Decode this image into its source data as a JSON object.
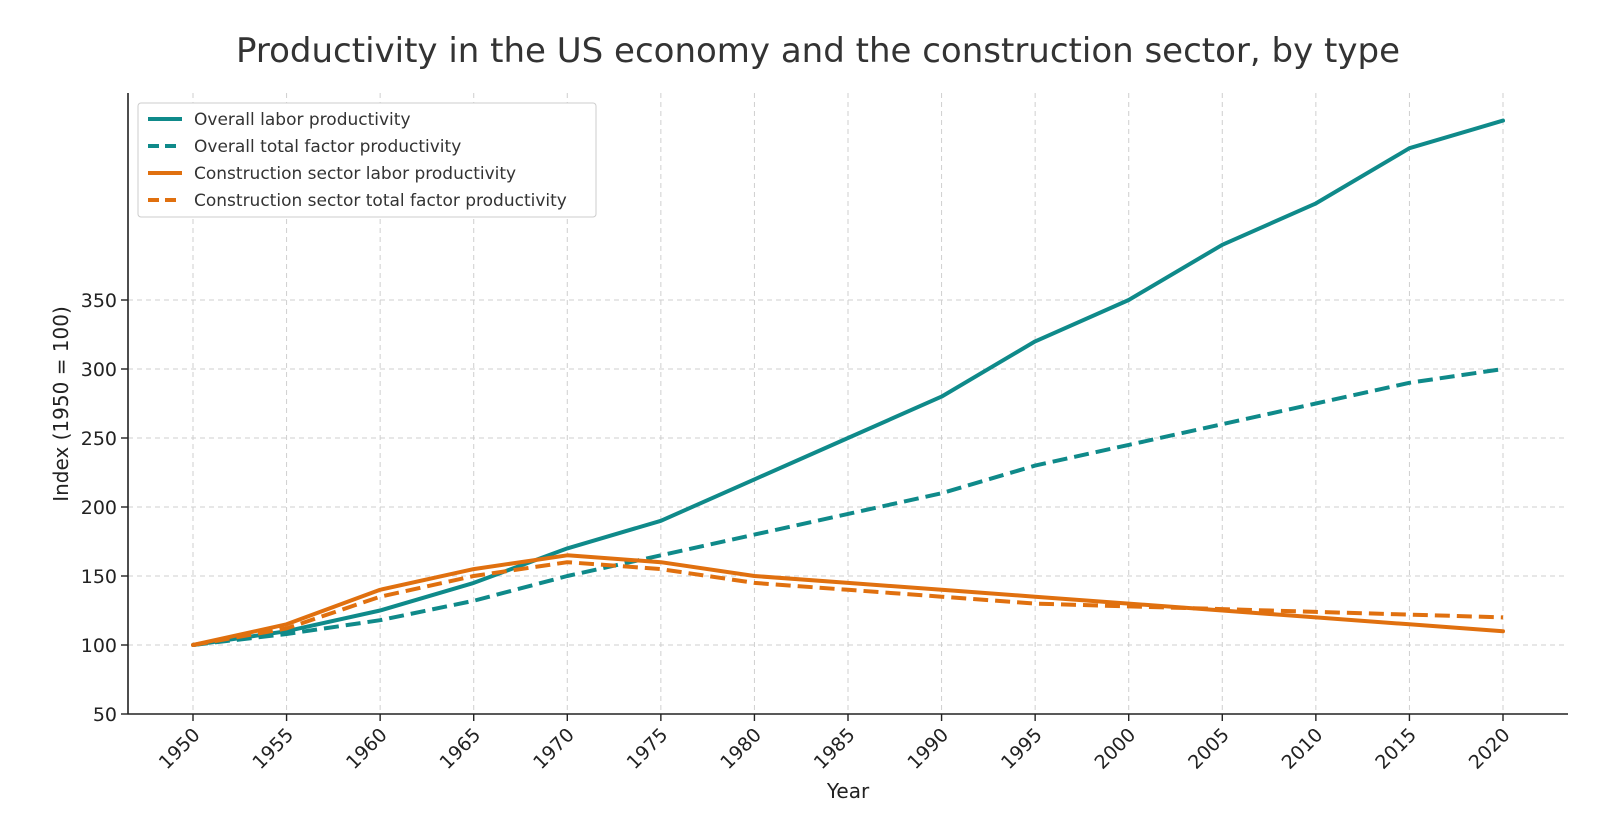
{
  "chart_data": {
    "type": "line",
    "title": "Productivity in the US economy and the construction sector, by type",
    "xlabel": "Year",
    "ylabel": "Index (1950 = 100)",
    "x": [
      1950,
      1955,
      1960,
      1965,
      1970,
      1975,
      1980,
      1985,
      1990,
      1995,
      2000,
      2005,
      2010,
      2015,
      2020
    ],
    "xticks": [
      "1950",
      "1955",
      "1960",
      "1965",
      "1970",
      "1975",
      "1980",
      "1985",
      "1990",
      "1995",
      "2000",
      "2005",
      "2010",
      "2015",
      "2020"
    ],
    "yticks": [
      "50",
      "100",
      "150",
      "200",
      "250",
      "300",
      "350"
    ],
    "ytick_values": [
      50,
      100,
      150,
      200,
      250,
      300,
      350
    ],
    "xlim": [
      1946.5,
      2023.5
    ],
    "ylim": [
      50,
      500
    ],
    "grid": true,
    "legend_position": "top-left",
    "series": [
      {
        "name": "Overall labor productivity",
        "color": "#0f8a8a",
        "style": "solid",
        "values": [
          100,
          110,
          125,
          145,
          170,
          190,
          220,
          250,
          280,
          320,
          350,
          390,
          420,
          460,
          480
        ]
      },
      {
        "name": "Overall total factor productivity",
        "color": "#0f8a8a",
        "style": "dashed",
        "values": [
          100,
          108,
          118,
          132,
          150,
          165,
          180,
          195,
          210,
          230,
          245,
          260,
          275,
          290,
          300
        ]
      },
      {
        "name": "Construction sector labor productivity",
        "color": "#e0700f",
        "style": "solid",
        "values": [
          100,
          115,
          140,
          155,
          165,
          160,
          150,
          145,
          140,
          135,
          130,
          125,
          120,
          115,
          110
        ]
      },
      {
        "name": "Construction sector total factor productivity",
        "color": "#e0700f",
        "style": "dashed",
        "values": [
          100,
          112,
          135,
          150,
          160,
          155,
          145,
          140,
          135,
          130,
          128,
          126,
          124,
          122,
          120
        ]
      }
    ]
  }
}
